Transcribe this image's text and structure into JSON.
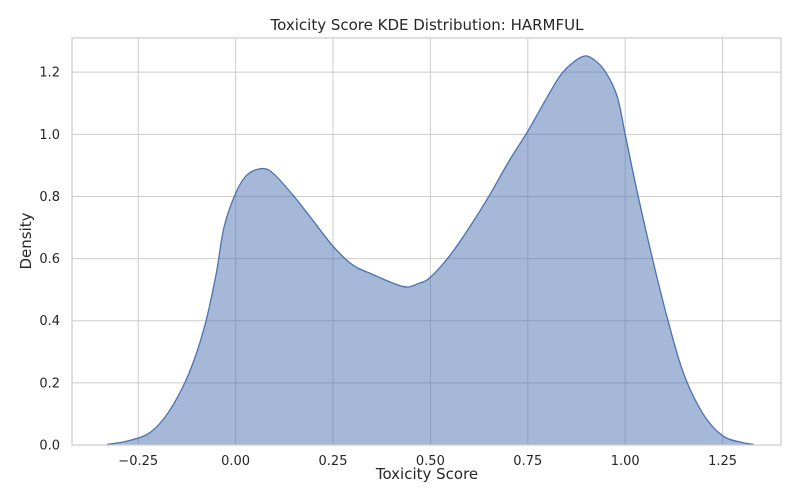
{
  "chart_data": {
    "type": "area",
    "title": "Toxicity Score KDE Distribution: HARMFUL",
    "xlabel": "Toxicity Score",
    "ylabel": "Density",
    "xlim": [
      -0.42,
      1.4
    ],
    "ylim": [
      0,
      1.31
    ],
    "xticks": [
      -0.25,
      0.0,
      0.25,
      0.5,
      0.75,
      1.0,
      1.25
    ],
    "xtick_labels": [
      "−0.25",
      "0.00",
      "0.25",
      "0.50",
      "0.75",
      "1.00",
      "1.25"
    ],
    "yticks": [
      0.0,
      0.2,
      0.4,
      0.6,
      0.8,
      1.0,
      1.2
    ],
    "ytick_labels": [
      "0.0",
      "0.2",
      "0.4",
      "0.6",
      "0.8",
      "1.0",
      "1.2"
    ],
    "grid": true,
    "colors": {
      "fill": "#4c72b0",
      "line": "#4c72b0"
    },
    "series": [
      {
        "x": [
          -0.33,
          -0.28,
          -0.22,
          -0.17,
          -0.12,
          -0.08,
          -0.05,
          -0.03,
          0.0,
          0.03,
          0.07,
          0.1,
          0.15,
          0.2,
          0.25,
          0.3,
          0.35,
          0.43,
          0.47,
          0.5,
          0.55,
          0.6,
          0.65,
          0.7,
          0.75,
          0.8,
          0.84,
          0.89,
          0.92,
          0.95,
          0.98,
          1.0,
          1.03,
          1.07,
          1.11,
          1.15,
          1.2,
          1.25,
          1.3,
          1.33
        ],
        "y": [
          0.002,
          0.012,
          0.04,
          0.11,
          0.23,
          0.38,
          0.55,
          0.7,
          0.81,
          0.87,
          0.89,
          0.87,
          0.8,
          0.72,
          0.64,
          0.58,
          0.55,
          0.51,
          0.52,
          0.54,
          0.61,
          0.7,
          0.8,
          0.91,
          1.01,
          1.12,
          1.2,
          1.25,
          1.24,
          1.2,
          1.12,
          1.0,
          0.82,
          0.6,
          0.4,
          0.23,
          0.1,
          0.03,
          0.008,
          0.002
        ]
      }
    ]
  }
}
